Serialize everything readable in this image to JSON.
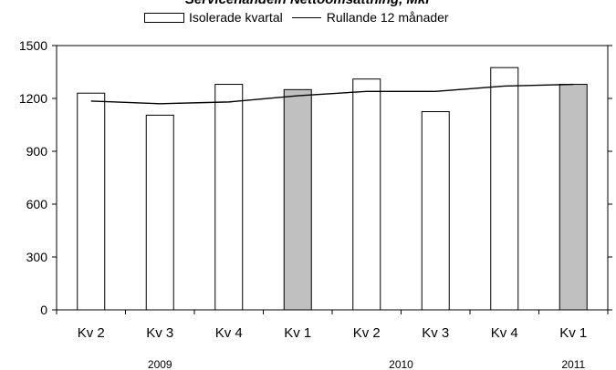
{
  "chart_data": {
    "type": "bar",
    "title": "Servicehandeln Nettoomsättning, Mkr",
    "categories": [
      "Kv 2",
      "Kv 3",
      "Kv 4",
      "Kv 1",
      "Kv 2",
      "Kv 3",
      "Kv 4",
      "Kv 1"
    ],
    "years": [
      {
        "label": "2009",
        "start": 0,
        "end": 2
      },
      {
        "label": "2010",
        "start": 3,
        "end": 6
      },
      {
        "label": "2011",
        "start": 7,
        "end": 7
      }
    ],
    "series": [
      {
        "name": "Isolerade kvartal",
        "type": "bar",
        "values": [
          1230,
          1105,
          1280,
          1250,
          1310,
          1125,
          1375,
          1280
        ],
        "colors": [
          "#ffffff",
          "#ffffff",
          "#ffffff",
          "#c0c0c0",
          "#ffffff",
          "#ffffff",
          "#ffffff",
          "#c0c0c0"
        ]
      },
      {
        "name": "Rullande 12 månader",
        "type": "line",
        "values": [
          1185,
          1170,
          1180,
          1215,
          1240,
          1240,
          1270,
          1280
        ],
        "color": "#000000"
      }
    ],
    "ylim": [
      0,
      1500
    ],
    "yticks": [
      "0",
      "300",
      "600",
      "900",
      "1200",
      "1500"
    ],
    "grid": false,
    "legend_position": "top"
  }
}
